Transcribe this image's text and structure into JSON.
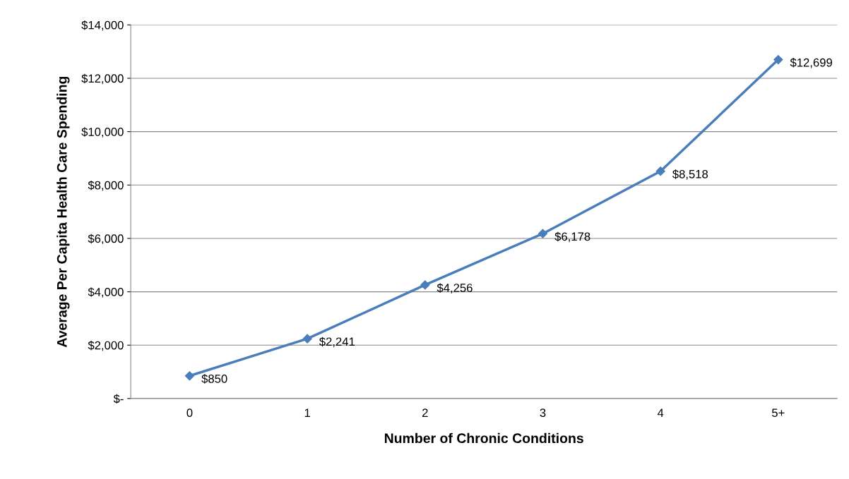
{
  "chart_data": {
    "type": "line",
    "xlabel": "Number of Chronic Conditions",
    "ylabel": "Average Per Capita Health Care Spending",
    "categories": [
      "0",
      "1",
      "2",
      "3",
      "4",
      "5+"
    ],
    "series": [
      {
        "color": "#4a7ebb",
        "values": [
          850,
          2241,
          4256,
          6178,
          8518,
          12699
        ],
        "value_labels": [
          "$850",
          "$2,241",
          "$4,256",
          "$6,178",
          "$8,518",
          "$12,699"
        ]
      }
    ],
    "ylim": [
      0,
      14000
    ],
    "yticks": [
      {
        "value": 0,
        "label": "$-"
      },
      {
        "value": 2000,
        "label": "$2,000"
      },
      {
        "value": 4000,
        "label": "$4,000"
      },
      {
        "value": 6000,
        "label": "$6,000"
      },
      {
        "value": 8000,
        "label": "$8,000"
      },
      {
        "value": 10000,
        "label": "$10,000"
      },
      {
        "value": 12000,
        "label": "$12,000"
      },
      {
        "value": 14000,
        "label": "$14,000"
      }
    ],
    "grid": "y",
    "marker": "diamond",
    "line_style": "solid"
  }
}
